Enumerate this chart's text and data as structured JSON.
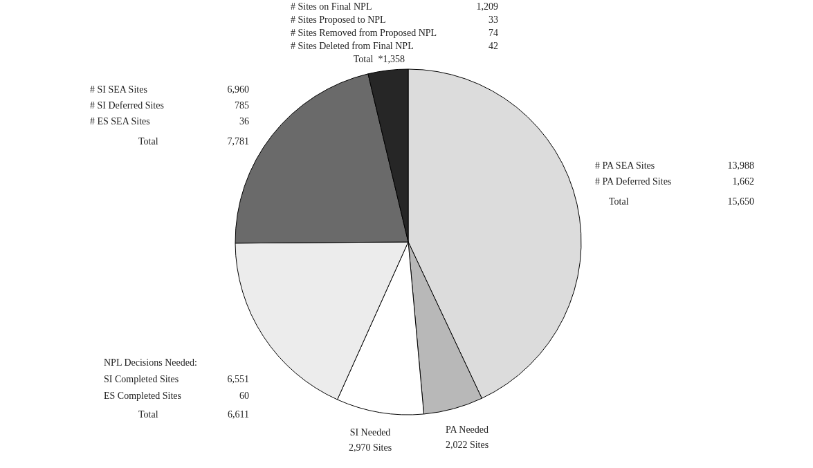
{
  "chart_data": {
    "type": "pie",
    "categories": [
      "Total",
      "PA Needed",
      "SI Needed",
      "Total",
      "Total",
      "Total"
    ],
    "values": [
      15650,
      2022,
      2970,
      6611,
      7781,
      1358
    ],
    "value_labels": [
      "15,650",
      "2,022 Sites",
      "2,970 Sites",
      "6,611",
      "7,781",
      "*1,358"
    ],
    "colors": [
      "#dcdcdc",
      "#b8b8b8",
      "#ffffff",
      "#ececec",
      "#6a6a6a",
      "#262626"
    ],
    "annotations": [
      "# Sites on Final NPL",
      "1,209",
      "# Sites Proposed to NPL",
      "33",
      "# Sites Removed from Proposed NPL",
      "74",
      "# Sites Deleted from Final NPL",
      "42",
      "# SI SEA Sites",
      "6,960",
      "# SI Deferred Sites",
      "785",
      "# ES SEA Sites",
      "36",
      "# PA SEA Sites",
      "13,988",
      "# PA Deferred Sites",
      "1,662",
      "NPL Decisions Needed:",
      "SI Completed Sites",
      "6,551",
      "ES Completed Sites",
      "60"
    ]
  }
}
